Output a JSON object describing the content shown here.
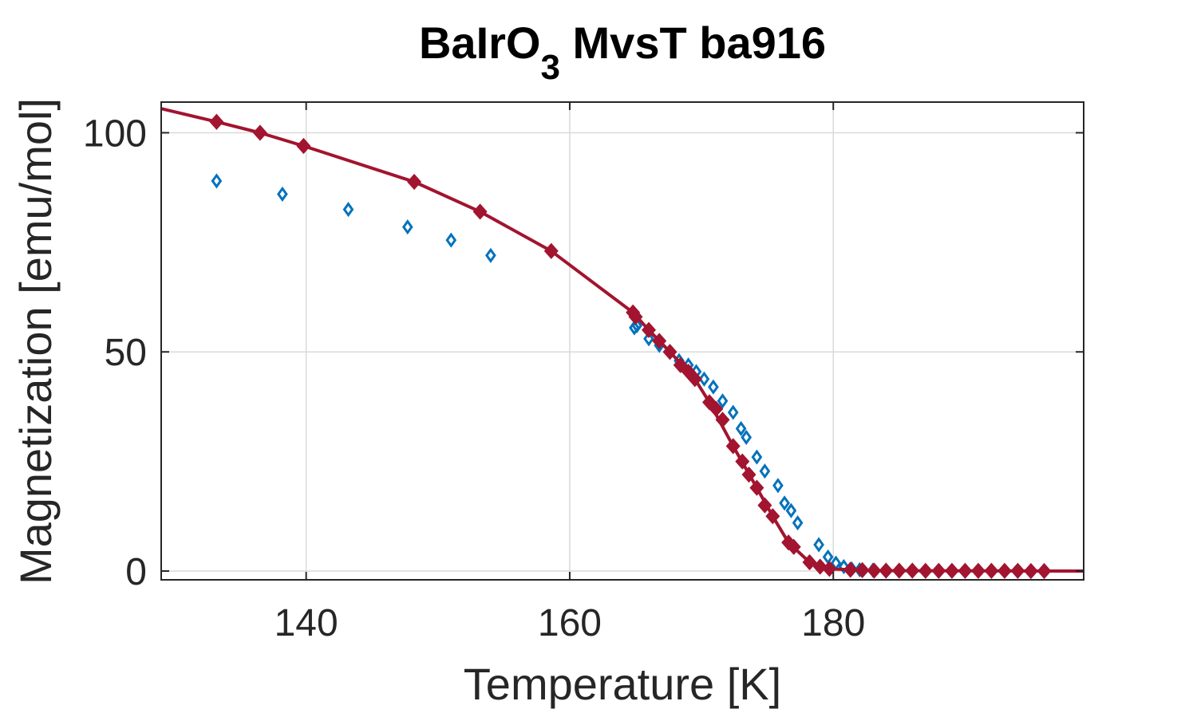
{
  "chart_data": {
    "type": "scatter",
    "title_main": "BaIrO",
    "title_subscript": "3",
    "title_rest": " MvsT ba916",
    "xlabel": "Temperature [K]",
    "ylabel": "Magnetization [emu/mol]",
    "xlim": [
      129,
      199
    ],
    "ylim": [
      -2,
      107
    ],
    "xticks": [
      140,
      160,
      180
    ],
    "xtick_labels": [
      "140",
      "160",
      "180"
    ],
    "yticks": [
      0,
      50,
      100
    ],
    "ytick_labels": [
      "0",
      "50",
      "100"
    ],
    "grid": true,
    "colors": {
      "blue": "#0072BD",
      "red": "#A2142F",
      "grid": "#d9d9d9",
      "axis": "#262626"
    },
    "series": [
      {
        "name": "blue-diamonds",
        "color": "#0072BD",
        "marker": "open-diamond",
        "points": [
          [
            133.2,
            89.0
          ],
          [
            138.2,
            86.0
          ],
          [
            143.2,
            82.5
          ],
          [
            147.7,
            78.5
          ],
          [
            151.0,
            75.5
          ],
          [
            154.0,
            72.0
          ],
          [
            164.9,
            55.5
          ],
          [
            165.1,
            56.0
          ],
          [
            166.0,
            53.0
          ],
          [
            166.8,
            51.5
          ],
          [
            168.3,
            48.0
          ],
          [
            169.0,
            47.0
          ],
          [
            169.6,
            45.5
          ],
          [
            170.2,
            43.8
          ],
          [
            170.9,
            42.0
          ],
          [
            171.6,
            38.8
          ],
          [
            172.4,
            36.2
          ],
          [
            173.0,
            32.5
          ],
          [
            173.4,
            30.5
          ],
          [
            174.2,
            26.0
          ],
          [
            174.8,
            22.8
          ],
          [
            175.8,
            19.5
          ],
          [
            176.3,
            15.5
          ],
          [
            176.8,
            13.8
          ],
          [
            177.3,
            11.0
          ],
          [
            178.9,
            6.0
          ],
          [
            179.6,
            3.2
          ],
          [
            180.2,
            1.8
          ],
          [
            180.8,
            1.0
          ],
          [
            181.4,
            0.5
          ],
          [
            182.0,
            0.3
          ],
          [
            183.0,
            0.2
          ],
          [
            184.0,
            0.1
          ],
          [
            185.0,
            0.1
          ],
          [
            186.0,
            0.1
          ],
          [
            187.0,
            0.05
          ],
          [
            188.0,
            0.05
          ],
          [
            189.0,
            0.05
          ],
          [
            190.0,
            0.05
          ],
          [
            191.0,
            0.05
          ],
          [
            192.0,
            0.05
          ],
          [
            193.0,
            0.05
          ],
          [
            194.0,
            0.05
          ],
          [
            195.0,
            0.0
          ]
        ]
      },
      {
        "name": "red-filled-diamonds",
        "color": "#A2142F",
        "marker": "filled-diamond-with-line",
        "points": [
          [
            133.2,
            102.5
          ],
          [
            136.5,
            100.0
          ],
          [
            139.8,
            97.0
          ],
          [
            148.2,
            88.8
          ],
          [
            153.2,
            82.0
          ],
          [
            158.6,
            73.0
          ],
          [
            164.8,
            59.0
          ],
          [
            165.0,
            58.0
          ],
          [
            166.0,
            55.0
          ],
          [
            166.8,
            52.5
          ],
          [
            167.6,
            50.0
          ],
          [
            168.4,
            47.0
          ],
          [
            169.0,
            45.5
          ],
          [
            169.5,
            43.8
          ],
          [
            170.6,
            38.5
          ],
          [
            171.1,
            37.0
          ],
          [
            171.6,
            34.5
          ],
          [
            172.4,
            28.5
          ],
          [
            173.1,
            25.0
          ],
          [
            173.6,
            22.0
          ],
          [
            174.2,
            19.0
          ],
          [
            174.8,
            15.0
          ],
          [
            175.4,
            12.5
          ],
          [
            176.6,
            6.5
          ],
          [
            177.0,
            5.5
          ],
          [
            178.2,
            2.0
          ],
          [
            179.0,
            1.0
          ],
          [
            179.7,
            0.5
          ],
          [
            181.3,
            0.3
          ],
          [
            182.2,
            0.2
          ],
          [
            183.1,
            0.1
          ],
          [
            184.0,
            0.1
          ],
          [
            185.0,
            0.1
          ],
          [
            186.0,
            0.1
          ],
          [
            187.0,
            0.05
          ],
          [
            188.0,
            0.05
          ],
          [
            189.0,
            0.05
          ],
          [
            190.0,
            0.05
          ],
          [
            191.0,
            0.05
          ],
          [
            192.0,
            0.05
          ],
          [
            193.0,
            0.05
          ],
          [
            194.0,
            0.05
          ],
          [
            195.0,
            0.0
          ],
          [
            196.0,
            0.0
          ]
        ],
        "line": [
          [
            129.0,
            105.5
          ],
          [
            133.2,
            102.5
          ],
          [
            136.5,
            100.0
          ],
          [
            139.8,
            97.0
          ],
          [
            148.2,
            88.8
          ],
          [
            153.2,
            82.0
          ],
          [
            158.6,
            73.0
          ],
          [
            164.8,
            59.0
          ],
          [
            166.0,
            55.0
          ],
          [
            167.6,
            50.0
          ],
          [
            169.5,
            43.8
          ],
          [
            170.6,
            38.5
          ],
          [
            172.4,
            28.5
          ],
          [
            174.2,
            19.0
          ],
          [
            175.4,
            12.5
          ],
          [
            176.6,
            6.5
          ],
          [
            178.2,
            2.0
          ],
          [
            179.7,
            0.5
          ],
          [
            183.0,
            0.1
          ],
          [
            190.0,
            0.05
          ],
          [
            196.0,
            0.0
          ],
          [
            199.0,
            0.0
          ]
        ]
      }
    ]
  }
}
